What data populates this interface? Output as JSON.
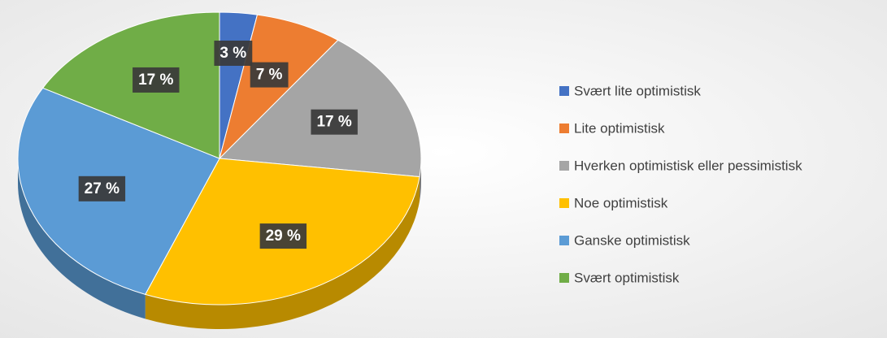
{
  "chart_data": {
    "type": "pie",
    "categories": [
      "Svært lite optimistisk",
      "Lite optimistisk",
      "Hverken optimistisk eller pessimistisk",
      "Noe optimistisk",
      "Ganske optimistisk",
      "Svært optimistisk"
    ],
    "values": [
      3,
      7,
      17,
      29,
      27,
      17
    ],
    "value_labels": [
      "3 %",
      "7 %",
      "17 %",
      "29 %",
      "27 %",
      "17 %"
    ],
    "colors": [
      "#4472c4",
      "#ed7d31",
      "#a5a5a5",
      "#ffc000",
      "#5b9bd5",
      "#70ad47"
    ],
    "legend": "right"
  }
}
